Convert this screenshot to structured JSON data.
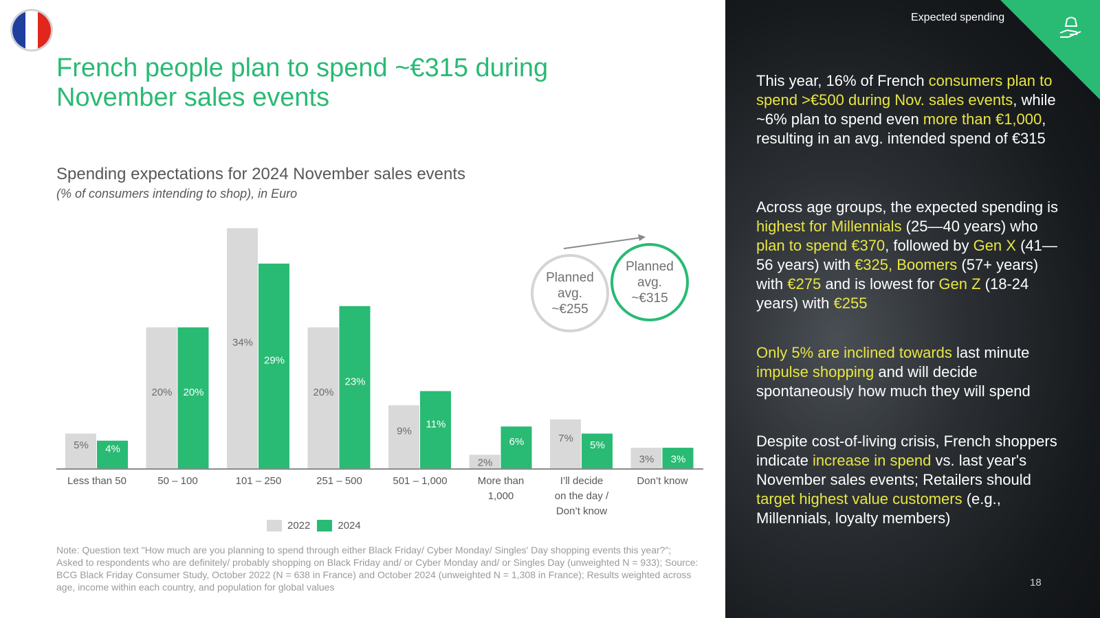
{
  "title": "French people plan to spend ~€315 during November sales events",
  "subtitle": "Spending expectations for 2024 November sales events",
  "subtitle_note": "(% of consumers intending to shop), in Euro",
  "badges": {
    "old": {
      "line1": "Planned",
      "line2": "avg.",
      "line3": "~€255"
    },
    "new": {
      "line1": "Planned",
      "line2": "avg.",
      "line3": "~€315"
    }
  },
  "note": "Note: Question text \"How much are you planning to spend through either Black Friday/ Cyber Monday/ Singles' Day shopping events this year?\"; Asked to respondents who are definitely/ probably shopping on Black Friday and/ or Cyber Monday and/ or Singles Day (unweighted N = 933); Source: BCG Black Friday Consumer Study, October 2022 (N = 638 in France) and October 2024 (unweighted N = 1,308 in France); Results weighted across age, income within each country, and population for global values",
  "right_panel": {
    "section_label": "Expected spending",
    "page_number": "18",
    "paragraphs": [
      [
        {
          "t": "This year, 16% of French ",
          "h": false
        },
        {
          "t": "consumers plan to spend >€500 during Nov. sales events",
          "h": true
        },
        {
          "t": ", while ~6% plan to spend even ",
          "h": false
        },
        {
          "t": "more than €1,000",
          "h": true
        },
        {
          "t": ", resulting in an avg. intended spend of €315",
          "h": false
        }
      ],
      [
        {
          "t": "Across age groups, the expected spending is ",
          "h": false
        },
        {
          "t": "highest for Millennials",
          "h": true
        },
        {
          "t": " (25—40 years) who ",
          "h": false
        },
        {
          "t": "plan to spend €370",
          "h": true
        },
        {
          "t": ", followed by ",
          "h": false
        },
        {
          "t": "Gen X",
          "h": true
        },
        {
          "t": " (41—56 years) with ",
          "h": false
        },
        {
          "t": "€325, Boomers",
          "h": true
        },
        {
          "t": " (57+ years) with ",
          "h": false
        },
        {
          "t": "€275",
          "h": true
        },
        {
          "t": " and is lowest for ",
          "h": false
        },
        {
          "t": "Gen Z",
          "h": true
        },
        {
          "t": " (18-24 years) with ",
          "h": false
        },
        {
          "t": "€255",
          "h": true
        }
      ],
      [
        {
          "t": "Only 5% are inclined towards",
          "h": true
        },
        {
          "t": " last minute ",
          "h": false
        },
        {
          "t": "impulse shopping",
          "h": true
        },
        {
          "t": " and will decide spontaneously how much they will spend",
          "h": false
        }
      ],
      [
        {
          "t": "Despite cost-of-living crisis, French shoppers indicate ",
          "h": false
        },
        {
          "t": "increase in spend",
          "h": true
        },
        {
          "t": " vs. last year's November sales events; Retailers should ",
          "h": false
        },
        {
          "t": "target highest value customers",
          "h": true
        },
        {
          "t": " (e.g., Millennials, loyalty members)",
          "h": false
        }
      ]
    ]
  },
  "colors": {
    "accent": "#29ba74",
    "series_2022": "#d9d9d9",
    "series_2024": "#29ba74",
    "highlight": "#e8e642"
  },
  "chart_data": {
    "type": "bar",
    "categories": [
      [
        "Less than 50"
      ],
      [
        "50 – 100"
      ],
      [
        "101 – 250"
      ],
      [
        "251 – 500"
      ],
      [
        "501 – 1,000"
      ],
      [
        "More than",
        "1,000"
      ],
      [
        "I’ll decide",
        "on the day /",
        "Don’t know"
      ],
      [
        "Don’t know"
      ]
    ],
    "series": [
      {
        "name": "2022",
        "values": [
          5,
          20,
          34,
          20,
          9,
          2,
          7,
          3
        ],
        "labels": [
          "5%",
          "20%",
          "34%",
          "20%",
          "9%",
          "2%",
          "7%",
          "3%"
        ]
      },
      {
        "name": "2024",
        "values": [
          4,
          20,
          29,
          23,
          11,
          6,
          5,
          3
        ],
        "labels": [
          "4%",
          "20%",
          "29%",
          "23%",
          "11%",
          "6%",
          "5%",
          "3%"
        ]
      }
    ],
    "ylim": [
      0,
      35
    ],
    "grid": false,
    "legend": "bottom"
  }
}
